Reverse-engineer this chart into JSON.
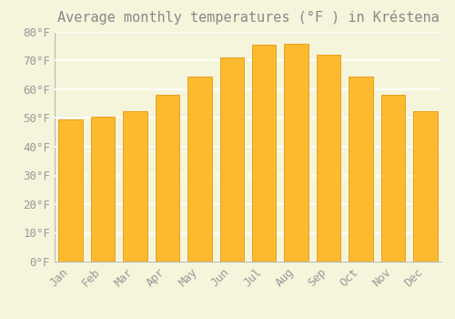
{
  "title": "Average monthly temperatures (°F ) in Kréstena",
  "months": [
    "Jan",
    "Feb",
    "Mar",
    "Apr",
    "May",
    "Jun",
    "Jul",
    "Aug",
    "Sep",
    "Oct",
    "Nov",
    "Dec"
  ],
  "values": [
    49.5,
    50.5,
    52.5,
    58.0,
    64.5,
    71.0,
    75.5,
    76.0,
    72.0,
    64.5,
    58.0,
    52.5
  ],
  "bar_color_face": "#FBBA30",
  "bar_color_edge": "#E8960A",
  "background_color": "#F5F5DC",
  "plot_bg_color": "#F5F5DC",
  "grid_color": "#FFFFFF",
  "text_color": "#999999",
  "title_color": "#888888",
  "ylim": [
    0,
    80
  ],
  "ytick_step": 10,
  "title_fontsize": 11,
  "tick_fontsize": 9,
  "bar_width": 0.75
}
